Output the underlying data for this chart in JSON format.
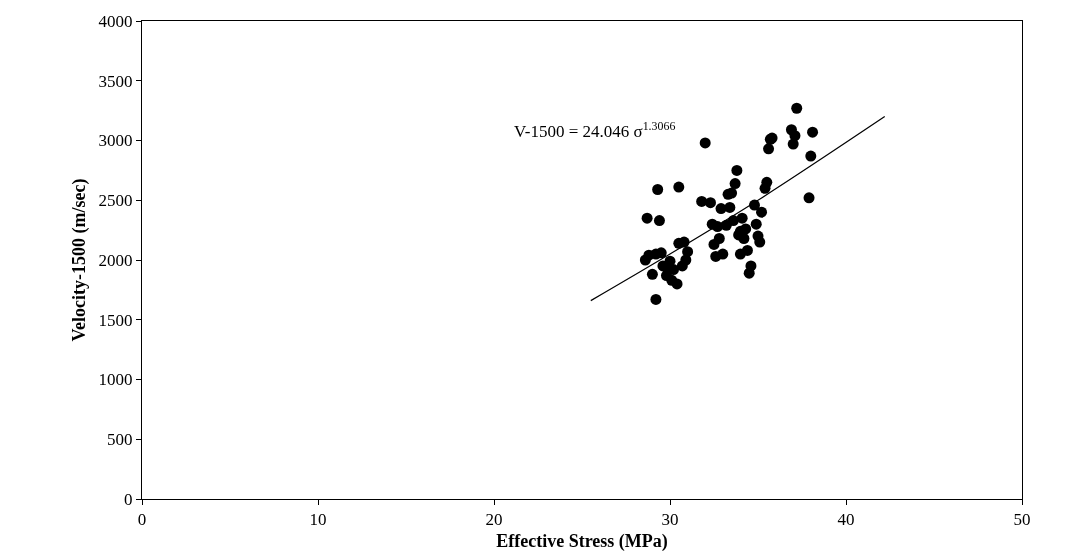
{
  "chart_data": {
    "type": "scatter",
    "xlabel": "Effective Stress (MPa)",
    "ylabel": "Velocity-1500 (m/sec)",
    "xlim": [
      0,
      50
    ],
    "xticks": [
      0,
      10,
      20,
      30,
      40,
      50
    ],
    "ylim": [
      0,
      4000
    ],
    "yticks": [
      0,
      500,
      1000,
      1500,
      2000,
      2500,
      3000,
      3500,
      4000
    ],
    "grid": false,
    "annotations": [
      "V-1500 = 24.046 σ$^{1.3066}$"
    ],
    "series": [
      {
        "marker": "circle",
        "color": "#000000",
        "x": [
          28.7,
          29.3,
          29.4,
          28.6,
          28.8,
          29.2,
          29.5,
          29.0,
          29.2,
          29.6,
          29.8,
          30.0,
          30.2,
          30.1,
          30.4,
          30.5,
          30.5,
          30.7,
          30.8,
          30.9,
          31.0,
          29.9,
          31.8,
          32.0,
          32.3,
          32.4,
          32.5,
          32.6,
          32.7,
          32.8,
          32.9,
          33.0,
          33.2,
          33.3,
          33.4,
          33.5,
          33.6,
          33.7,
          33.8,
          33.9,
          34.0,
          34.1,
          34.2,
          34.3,
          34.4,
          34.5,
          34.6,
          34.8,
          34.9,
          35.0,
          35.1,
          35.2,
          35.4,
          35.5,
          35.6,
          35.8,
          35.7,
          36.9,
          37.0,
          37.1,
          37.2,
          37.9,
          38.0,
          38.1,
          34.0
        ],
        "values": [
          2350,
          2590,
          2330,
          2000,
          2040,
          2050,
          2060,
          1880,
          1670,
          1950,
          1870,
          1990,
          1920,
          1830,
          1800,
          2140,
          2610,
          1950,
          2150,
          2000,
          2070,
          1920,
          2490,
          2980,
          2480,
          2300,
          2130,
          2030,
          2280,
          2180,
          2430,
          2050,
          2290,
          2550,
          2440,
          2560,
          2330,
          2640,
          2750,
          2210,
          2050,
          2350,
          2180,
          2260,
          2080,
          1890,
          1950,
          2460,
          2300,
          2200,
          2150,
          2400,
          2600,
          2650,
          2930,
          3020,
          3010,
          3090,
          2970,
          3040,
          3270,
          2520,
          2870,
          3070,
          2240
        ]
      },
      {
        "type": "line",
        "marker": "none",
        "color": "#000000",
        "x": [
          25.5,
          30,
          35,
          42.2
        ],
        "values": [
          1660,
          2050,
          2500,
          3200
        ]
      }
    ]
  }
}
